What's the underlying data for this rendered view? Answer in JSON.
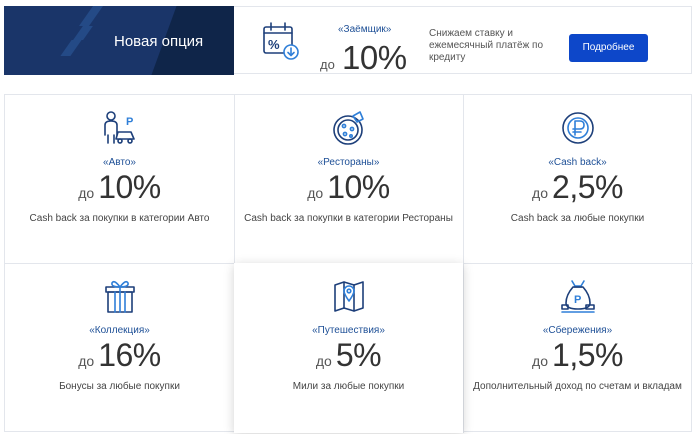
{
  "banner": {
    "title": "Новая опция",
    "category": "«Заёмщик»",
    "prefix": "до",
    "value": "10%",
    "description": "Снижаем ставку и ежемесячный платёж по кредиту",
    "button_label": "Подробнее",
    "icon": "calendar-percent-icon"
  },
  "options": [
    {
      "category": "«Авто»",
      "prefix": "до",
      "value": "10%",
      "description": "Cash back за покупки в категории Авто",
      "icon": "car-parking-icon"
    },
    {
      "category": "«Рестораны»",
      "prefix": "до",
      "value": "10%",
      "description": "Cash back за покупки в категории Рестораны",
      "icon": "pizza-icon"
    },
    {
      "category": "«Cash back»",
      "prefix": "до",
      "value": "2,5%",
      "description": "Cash back за любые покупки",
      "icon": "ruble-coin-icon"
    },
    {
      "category": "«Коллекция»",
      "prefix": "до",
      "value": "16%",
      "description": "Бонусы за любые покупки",
      "icon": "gift-icon"
    },
    {
      "category": "«Путешествия»",
      "prefix": "до",
      "value": "5%",
      "description": "Мили за любые покупки",
      "icon": "map-pin-icon"
    },
    {
      "category": "«Сбережения»",
      "prefix": "до",
      "value": "1,5%",
      "description": "Дополнительный доход по счетам и вкладам",
      "icon": "money-bag-icon"
    }
  ],
  "colors": {
    "banner_bg": "#1a3569",
    "accent_blue": "#0d47c9",
    "category_blue": "#1d4f96",
    "icon_dark": "#1d3f7a",
    "icon_light": "#2f7fd8"
  }
}
